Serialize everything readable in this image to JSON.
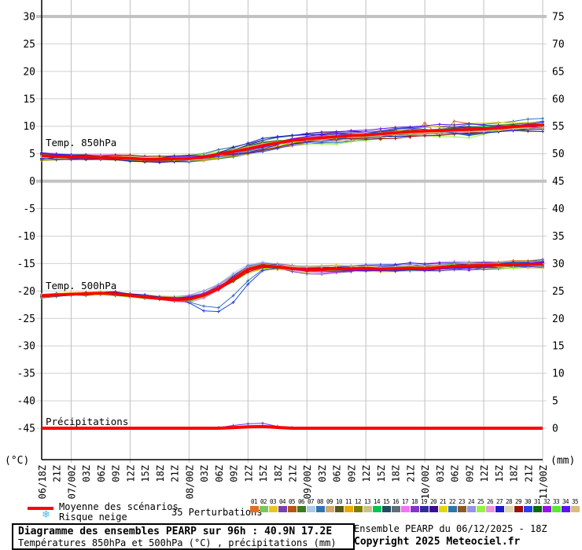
{
  "chart_data": {
    "type": "line",
    "title": "Diagramme des ensembles PEARP sur 96h : 40.9N 17.2E",
    "subtitle": "Températures 850hPa et 500hPa (°C) , précipitations (mm)",
    "x_labels": [
      "06/18Z",
      "21Z",
      "07/00Z",
      "03Z",
      "06Z",
      "09Z",
      "12Z",
      "15Z",
      "18Z",
      "21Z",
      "08/00Z",
      "03Z",
      "06Z",
      "09Z",
      "12Z",
      "15Z",
      "18Z",
      "21Z",
      "09/00Z",
      "03Z",
      "06Z",
      "09Z",
      "12Z",
      "15Z",
      "18Z",
      "21Z",
      "10/00Z",
      "03Z",
      "06Z",
      "09Z",
      "12Z",
      "15Z",
      "18Z",
      "21Z",
      "11/00Z"
    ],
    "grid_x_indices": [
      2,
      6,
      10,
      14,
      18,
      22,
      26,
      30,
      34
    ],
    "left_axis": {
      "unit": "(°C)",
      "ticks": [
        30,
        25,
        20,
        15,
        10,
        5,
        0,
        -5,
        -10,
        -15,
        -20,
        -25,
        -30,
        -35,
        -40,
        -45
      ],
      "emphasized": [
        30,
        0
      ]
    },
    "right_axis": {
      "unit": "(mm)",
      "ticks": [
        75,
        70,
        65,
        60,
        55,
        50,
        45,
        40,
        35,
        30,
        25,
        20,
        15,
        10,
        5,
        0
      ]
    },
    "members": 35,
    "mean_color": "#ff0000",
    "bands": [
      {
        "id": "t850",
        "label": "Temp. 850hPa",
        "mean": [
          4.6,
          4.5,
          4.4,
          4.4,
          4.3,
          4.3,
          4.2,
          4.0,
          4.0,
          4.1,
          4.1,
          4.4,
          4.9,
          5.4,
          5.9,
          6.5,
          7.0,
          7.4,
          7.7,
          7.9,
          8.1,
          8.3,
          8.4,
          8.6,
          8.8,
          9.0,
          9.1,
          9.2,
          9.3,
          9.4,
          9.5,
          9.7,
          9.9,
          10.1,
          10.2
        ],
        "spread": [
          0.9,
          0.8,
          0.7,
          0.7,
          0.7,
          0.7,
          0.8,
          0.9,
          0.9,
          0.9,
          1.0,
          1.1,
          1.3,
          1.4,
          1.5,
          1.5,
          1.5,
          1.4,
          1.4,
          1.4,
          1.5,
          1.5,
          1.5,
          1.5,
          1.5,
          1.5,
          1.6,
          1.7,
          1.7,
          1.7,
          1.6,
          1.5,
          1.5,
          1.4,
          1.4
        ],
        "outliers": [
          {
            "member": 0,
            "deltas": {
              "20": 0.4,
              "22": 0.9,
              "24": 1.6,
              "26": 2.6,
              "28": 2.6,
              "29": 2.2,
              "30": 1.4,
              "31": 1.2,
              "32": 0.6
            }
          }
        ]
      },
      {
        "id": "t500",
        "label": "Temp. 500hPa",
        "mean": [
          -20.9,
          -20.7,
          -20.6,
          -20.5,
          -20.4,
          -20.5,
          -20.8,
          -21.1,
          -21.4,
          -21.6,
          -21.5,
          -20.8,
          -19.6,
          -17.8,
          -16.1,
          -15.4,
          -15.6,
          -15.9,
          -16.1,
          -16.1,
          -16.0,
          -16.0,
          -15.9,
          -16.0,
          -15.9,
          -15.8,
          -15.9,
          -15.7,
          -15.5,
          -15.4,
          -15.3,
          -15.3,
          -15.2,
          -15.2,
          -15.1
        ],
        "spread": [
          0.5,
          0.5,
          0.5,
          0.5,
          0.5,
          0.5,
          0.6,
          0.7,
          0.8,
          0.9,
          1.0,
          1.1,
          1.2,
          1.2,
          1.0,
          0.9,
          0.9,
          0.9,
          1.0,
          1.0,
          1.0,
          1.0,
          1.0,
          1.0,
          1.0,
          1.1,
          1.1,
          1.1,
          1.2,
          1.2,
          1.2,
          1.2,
          1.3,
          1.3,
          1.3
        ],
        "outliers": [
          {
            "member": 29,
            "deltas": {
              "10": -1.0,
              "11": -3.2,
              "12": -4.6,
              "13": -4.5,
              "14": -3.0,
              "15": -1.2,
              "16": -0.3
            }
          },
          {
            "member": 7,
            "deltas": {
              "10": -0.5,
              "11": -2.0,
              "12": -3.4,
              "13": -3.2,
              "14": -2.2,
              "15": -0.8
            }
          }
        ]
      }
    ],
    "precipitation": {
      "label": "Précipitations",
      "mean": [
        0,
        0,
        0,
        0,
        0,
        0,
        0,
        0,
        0,
        0,
        0,
        0,
        0,
        0.1,
        0.25,
        0.3,
        0.15,
        0,
        0,
        0,
        0,
        0,
        0,
        0,
        0,
        0,
        0,
        0,
        0,
        0,
        0,
        0,
        0,
        0,
        0
      ],
      "member_max": [
        0,
        0,
        0,
        0,
        0,
        0,
        0,
        0,
        0,
        0,
        0,
        0,
        0.1,
        0.5,
        0.8,
        0.9,
        0.35,
        0.1,
        0,
        0,
        0,
        0,
        0,
        0,
        0,
        0,
        0,
        0,
        0,
        0,
        0,
        0,
        0,
        0,
        0
      ],
      "member_max_color": "#7a30d8"
    },
    "member_palette": [
      "#e07020",
      "#7dc462",
      "#e8c61c",
      "#7a3fa8",
      "#b55512",
      "#3d7a1f",
      "#a9c9e8",
      "#2e74b5",
      "#d2a768",
      "#55591a",
      "#f0a500",
      "#7d7d00",
      "#c9c289",
      "#0ac452",
      "#1d4e5f",
      "#5f6d77",
      "#f473f4",
      "#8633cc",
      "#352a9b",
      "#3c0a96",
      "#e8d40a",
      "#2f74ae",
      "#8a5a2a",
      "#9394ea",
      "#96f23c",
      "#ea96da",
      "#1b1bd0",
      "#dcd6b2",
      "#991111",
      "#2542ea",
      "#0a6b0a",
      "#9612ea",
      "#55ea33",
      "#6012f2",
      "#dcbc7a"
    ],
    "grid": {
      "minor_color": "#d0d0d0",
      "vertical_color": "#bfbfbf",
      "major_color": "#c2c2c2",
      "axis_color": "#000000"
    }
  },
  "legend": {
    "mean_label": "Moyenne des scénarios",
    "snow_label": "Risque neige",
    "snowflake": "❄",
    "snowflake_color": "#4db8e8",
    "perturbations_label": "35 Perturbations",
    "member_ids": [
      "01",
      "02",
      "03",
      "04",
      "05",
      "06",
      "07",
      "08",
      "09",
      "10",
      "11",
      "12",
      "13",
      "14",
      "15",
      "16",
      "17",
      "18",
      "19",
      "20",
      "21",
      "22",
      "23",
      "24",
      "25",
      "26",
      "27",
      "28",
      "29",
      "30",
      "31",
      "32",
      "33",
      "34",
      "35"
    ]
  },
  "footer": {
    "box_title": "Diagramme des ensembles PEARP sur 96h : 40.9N 17.2E",
    "box_subtitle": "Températures 850hPa et 500hPa (°C) , précipitations (mm)",
    "run_info": "Ensemble PEARP du 06/12/2025 - 18Z",
    "copyright": "Copyright 2025 Meteociel.fr"
  }
}
